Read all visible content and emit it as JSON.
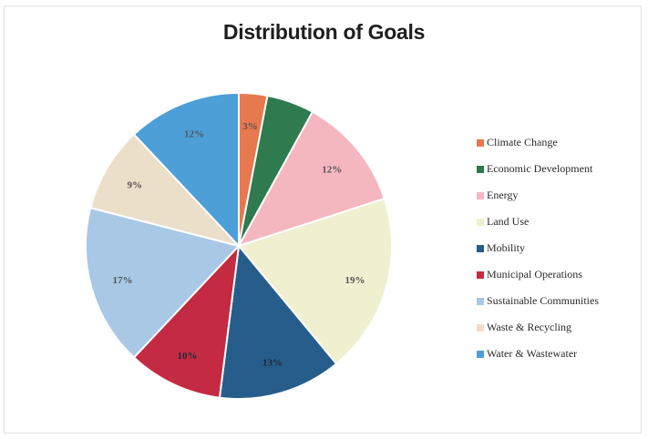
{
  "chart_data": {
    "type": "pie",
    "title": "Distribution of Goals",
    "start_angle_deg": 0,
    "direction": "clockwise",
    "legend_position": "right",
    "series": [
      {
        "name": "Climate Change",
        "value": 3,
        "label": "3%",
        "color": "#e8784d"
      },
      {
        "name": "Economic Development",
        "value": 5,
        "label": "",
        "color": "#2f7a4f"
      },
      {
        "name": "Energy",
        "value": 12,
        "label": "12%",
        "color": "#f4b7c0"
      },
      {
        "name": "Land Use",
        "value": 19,
        "label": "19%",
        "color": "#f0efd0"
      },
      {
        "name": "Mobility",
        "value": 13,
        "label": "13%",
        "color": "#275d8a"
      },
      {
        "name": "Municipal Operations",
        "value": 10,
        "label": "10%",
        "color": "#c42a42"
      },
      {
        "name": "Sustainable Communities",
        "value": 17,
        "label": "17%",
        "color": "#a8c8e6"
      },
      {
        "name": "Waste & Recycling",
        "value": 9,
        "label": "9%",
        "color": "#ecdfc9"
      },
      {
        "name": "Water & Wastewater",
        "value": 12,
        "label": "12%",
        "color": "#4d9fd8"
      }
    ]
  }
}
